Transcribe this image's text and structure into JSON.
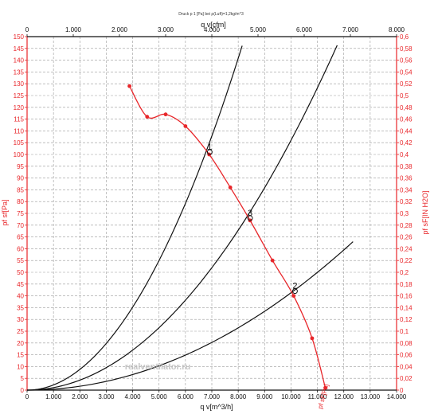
{
  "chart_data": {
    "type": "line",
    "title": "Druck p 1 [Pa] bei ρ(Luft)=1,2kg/m^3",
    "xlabel_bottom": "q v[m^3/h]",
    "xlabel_top": "q v[cfm]",
    "ylabel_left": "pf sf[Pa]",
    "ylabel_right": "pf sF[IN H2O]",
    "xlim": [
      0,
      14000
    ],
    "ylim": [
      0,
      150
    ],
    "x2lim": [
      0,
      8000
    ],
    "y2lim": [
      0,
      0.6
    ],
    "x_ticks": [
      0,
      1000,
      2000,
      3000,
      4000,
      5000,
      6000,
      7000,
      8000,
      9000,
      10000,
      11000,
      12000,
      13000,
      14000
    ],
    "x_tick_labels": [
      "0",
      "1.000",
      "2.000",
      "3.000",
      "4.000",
      "5.000",
      "6.000",
      "7.000",
      "8.000",
      "9.000",
      "10.000",
      "11.000",
      "12.000",
      "13.000",
      "14.000"
    ],
    "x2_ticks": [
      0,
      1000,
      2000,
      3000,
      4000,
      5000,
      6000,
      7000,
      8000
    ],
    "x2_tick_labels": [
      "0",
      "1.000",
      "2.000",
      "3.000",
      "4.000",
      "5.000",
      "6.000",
      "7.000",
      "8.000"
    ],
    "y_ticks": [
      0,
      5,
      10,
      15,
      20,
      25,
      30,
      35,
      40,
      45,
      50,
      55,
      60,
      65,
      70,
      75,
      80,
      85,
      90,
      95,
      100,
      105,
      110,
      115,
      120,
      125,
      130,
      135,
      140,
      145,
      150
    ],
    "y_tick_labels": [
      "0",
      "5",
      "10",
      "15",
      "20",
      "25",
      "30",
      "35",
      "40",
      "45",
      "50",
      "55",
      "60",
      "65",
      "70",
      "75",
      "80",
      "85",
      "90",
      "95",
      "100",
      "105",
      "110",
      "115",
      "120",
      "125",
      "130",
      "135",
      "140",
      "145",
      "150"
    ],
    "y2_ticks": [
      0,
      0.02,
      0.04,
      0.06,
      0.08,
      0.1,
      0.12,
      0.14,
      0.16,
      0.18,
      0.2,
      0.22,
      0.24,
      0.26,
      0.28,
      0.3,
      0.32,
      0.34,
      0.36,
      0.38,
      0.4,
      0.42,
      0.44,
      0.46,
      0.48,
      0.5,
      0.52,
      0.54,
      0.56,
      0.58,
      0.6
    ],
    "y2_tick_labels": [
      "0",
      "0,02",
      "0,04",
      "0,06",
      "0,08",
      "0,1",
      "0,12",
      "0,14",
      "0,16",
      "0,18",
      "0,2",
      "0,22",
      "0,24",
      "0,26",
      "0,28",
      "0,3",
      "0,32",
      "0,34",
      "0,36",
      "0,38",
      "0,4",
      "0,42",
      "0,44",
      "0,46",
      "0,48",
      "0,5",
      "0,52",
      "0,54",
      "0,56",
      "0,58",
      "0,6"
    ],
    "grid": true,
    "fan_curve": {
      "color": "#e8262a",
      "points": [
        [
          3880,
          129
        ],
        [
          4550,
          116
        ],
        [
          5250,
          117
        ],
        [
          6000,
          112
        ],
        [
          6900,
          100
        ],
        [
          7700,
          86
        ],
        [
          8450,
          72
        ],
        [
          9300,
          55
        ],
        [
          10100,
          40
        ],
        [
          10800,
          22
        ],
        [
          11300,
          1
        ]
      ]
    },
    "system_curves": [
      {
        "k": 2.2e-06,
        "x_end": 8150
      },
      {
        "k": 1.06e-06,
        "x_end": 11750
      },
      {
        "k": 4.13e-07,
        "x_end": 12350
      }
    ],
    "operating_points": [
      {
        "label": "1",
        "x": 6920,
        "y": 101
      },
      {
        "label": "3",
        "x": 8450,
        "y": 73
      },
      {
        "label": "2",
        "x": 10150,
        "y": 42
      }
    ],
    "curve_end_label": "pf sF[Pa]",
    "curve_color": "#111111",
    "axis_color_left": "#e8262a",
    "axis_color_right": "#e8262a",
    "watermark": "realventilator.ru"
  }
}
